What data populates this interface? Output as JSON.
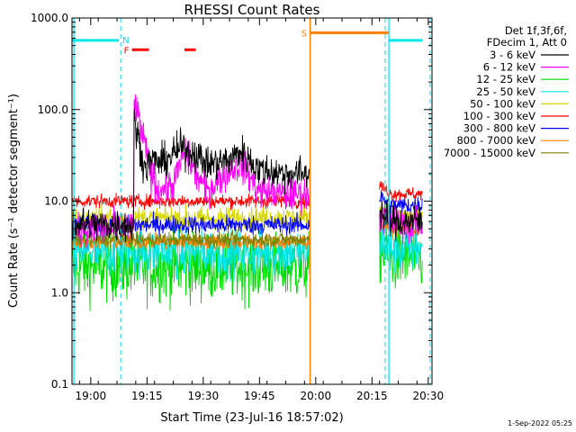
{
  "chart_data": {
    "type": "line",
    "title": "RHESSI Count Rates",
    "xlabel": "Start Time (23-Jul-16 18:57:02)",
    "ylabel": "Count Rate (s⁻¹ detector segment⁻¹)",
    "yscale": "log",
    "ylim": [
      0.1,
      1000
    ],
    "xlim_minutes": [
      -2,
      94
    ],
    "x_ticks": [
      {
        "min": 3,
        "label": "19:00"
      },
      {
        "min": 18,
        "label": "19:15"
      },
      {
        "min": 33,
        "label": "19:30"
      },
      {
        "min": 48,
        "label": "19:45"
      },
      {
        "min": 63,
        "label": "20:00"
      },
      {
        "min": 78,
        "label": "20:15"
      },
      {
        "min": 93,
        "label": "20:30"
      }
    ],
    "y_ticks": [
      {
        "v": 0.1,
        "label": "0.1"
      },
      {
        "v": 1,
        "label": "1.0"
      },
      {
        "v": 10,
        "label": "10.0"
      },
      {
        "v": 100,
        "label": "100.0"
      },
      {
        "v": 1000,
        "label": "1000.0"
      }
    ],
    "legend_header": [
      "Det 1f,3f,6f,",
      "FDecim 1, Att 0"
    ],
    "legend_position": "right",
    "series": [
      {
        "name": "3 - 6 keV",
        "color": "#000000",
        "level": 5.5,
        "noise": 0.18,
        "flare": [
          [
            14.5,
            80
          ],
          [
            17.5,
            22
          ],
          [
            19,
            28
          ],
          [
            22,
            26
          ],
          [
            27,
            38
          ],
          [
            31,
            33
          ],
          [
            34,
            25
          ],
          [
            40,
            28
          ],
          [
            43,
            35
          ],
          [
            48,
            22
          ],
          [
            55,
            20
          ]
        ],
        "post_level": 6.0
      },
      {
        "name": "6 - 12 keV",
        "color": "#ff00ff",
        "level": 5.0,
        "noise": 0.18,
        "flare": [
          [
            14.5,
            130
          ],
          [
            16.5,
            60
          ],
          [
            19,
            20
          ],
          [
            21,
            13
          ],
          [
            25,
            15
          ],
          [
            28,
            35
          ],
          [
            31,
            20
          ],
          [
            34,
            13
          ],
          [
            40,
            22
          ],
          [
            43,
            25
          ],
          [
            48,
            13
          ],
          [
            55,
            12
          ]
        ],
        "post_level": 5.5
      },
      {
        "name": "12 - 25 keV",
        "color": "#00dd00",
        "level": 1.9,
        "noise": 0.35,
        "post_level": 2.4
      },
      {
        "name": "25 - 50 keV",
        "color": "#00e5e5",
        "level": 2.8,
        "noise": 0.25,
        "post_level": 3.0
      },
      {
        "name": "50 - 100 keV",
        "color": "#d4d400",
        "level": 6.5,
        "noise": 0.12,
        "post_level": 7.0
      },
      {
        "name": "100 - 300 keV",
        "color": "#ff0000",
        "level": 10.0,
        "noise": 0.07,
        "post_level": 12.0
      },
      {
        "name": "300 - 800 keV",
        "color": "#0000ff",
        "level": 5.5,
        "noise": 0.1,
        "post_level": 9.0
      },
      {
        "name": "800 - 7000 keV",
        "color": "#ff8000",
        "level": 3.6,
        "noise": 0.08,
        "post_level": 5.0
      },
      {
        "name": "7000 - 15000 keV",
        "color": "#808000",
        "level": 3.8,
        "noise": 0.08,
        "post_level": 6.0
      }
    ],
    "data_segments_minutes": [
      [
        -2,
        61.5
      ],
      [
        80,
        91.5
      ]
    ],
    "annotations": {
      "night_label": "N",
      "saa_label": "S",
      "flare_label": "F",
      "night_bars": [
        [
          -2,
          10.5
        ],
        [
          82.5,
          91.5
        ]
      ],
      "night_value": 570,
      "saa_bar": [
        61.5,
        82.5
      ],
      "saa_value": 690,
      "flare_bars": [
        [
          14,
          18.5
        ],
        [
          28,
          31
        ]
      ],
      "flare_value": 450,
      "cyan_lines_solid": [
        -1.5,
        82.5
      ],
      "cyan_lines_dashed": [
        11,
        81.5,
        93.5
      ],
      "orange_line": 61.5,
      "colors": {
        "night": "#00e5e5",
        "saa": "#ff8000",
        "flare": "#ff0000"
      }
    }
  },
  "footer": {
    "timestamp": "1-Sep-2022 05:25"
  }
}
